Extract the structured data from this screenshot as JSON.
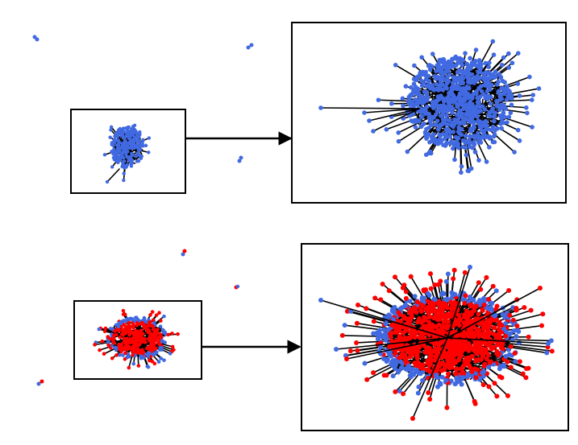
{
  "figure": {
    "colors": {
      "node_blue": "#4169E1",
      "node_red": "#FF0000",
      "edge": "#000000",
      "frame": "#000000",
      "background": "#FFFFFF"
    },
    "panels": [
      {
        "id": "top",
        "node_colors": [
          "node_blue"
        ],
        "red_fraction": 0,
        "description_icons": [
          "network-cluster-icon",
          "zoom-arrow-icon"
        ]
      },
      {
        "id": "bottom",
        "node_colors": [
          "node_red",
          "node_blue"
        ],
        "red_fraction": 0.75,
        "description_icons": [
          "network-cluster-icon",
          "zoom-arrow-icon"
        ]
      }
    ]
  }
}
